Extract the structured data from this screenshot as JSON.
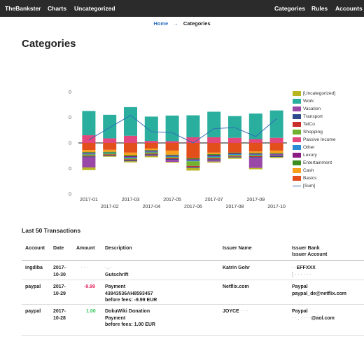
{
  "navbar": {
    "brand": "TheBankster",
    "left_links": [
      "Charts",
      "Uncategorized"
    ],
    "right_links": [
      "Categories",
      "Rules",
      "Accounts"
    ]
  },
  "breadcrumb": {
    "home": "Home",
    "separator": "→",
    "current": "Categories"
  },
  "page_title": "Categories",
  "chart_data": {
    "type": "bar",
    "stacked": true,
    "title": "",
    "xlabel": "",
    "ylabel": "",
    "categories": [
      "2017-01",
      "2017-02",
      "2017-03",
      "2017-04",
      "2017-05",
      "2017-06",
      "2017-07",
      "2017-08",
      "2017-09",
      "2017-10"
    ],
    "y_tick_labels": [
      "0",
      "0",
      "0",
      "0",
      "0"
    ],
    "ylim": [
      -2,
      2
    ],
    "zero_line": true,
    "colors": {
      "[Uncategorized]": "#b7b521",
      "Work": "#2aaf9e",
      "Vacation": "#9a48a8",
      "Transport": "#2f4a8c",
      "TelCo": "#c9302c",
      "Shopping": "#6fb22f",
      "Passive Income": "#e2477e",
      "Other": "#2b8ad3",
      "Luxury": "#8a1c84",
      "Entertainment": "#3c8d1f",
      "Cash": "#f7a01e",
      "Basics": "#e24f1b",
      "[Sum]": "#2f6db5"
    },
    "positive_series": [
      {
        "name": "Passive Income",
        "values": [
          0.3,
          0.18,
          0.28,
          0.08,
          0.07,
          0.22,
          0.22,
          0.2,
          0.15,
          0.2
        ]
      },
      {
        "name": "Work",
        "values": [
          0.95,
          0.92,
          1.12,
          0.95,
          1.0,
          0.86,
          1.0,
          0.85,
          1.0,
          1.07
        ]
      }
    ],
    "negative_series": [
      {
        "name": "Basics",
        "values": [
          0.28,
          0.27,
          0.38,
          0.22,
          0.3,
          0.6,
          0.38,
          0.38,
          0.33,
          0.3
        ]
      },
      {
        "name": "Cash",
        "values": [
          0.08,
          0.08,
          0.1,
          0.06,
          0.16,
          0.0,
          0.06,
          0.0,
          0.06,
          0.1
        ]
      },
      {
        "name": "Entertainment",
        "values": [
          0.03,
          0.03,
          0.04,
          0.03,
          0.03,
          0.04,
          0.04,
          0.03,
          0.03,
          0.03
        ]
      },
      {
        "name": "Luxury",
        "values": [
          0.03,
          0.0,
          0.04,
          0.03,
          0.03,
          0.04,
          0.04,
          0.03,
          0.03,
          0.03
        ]
      },
      {
        "name": "Other",
        "values": [
          0.03,
          0.03,
          0.04,
          0.03,
          0.03,
          0.04,
          0.04,
          0.03,
          0.03,
          0.03
        ]
      },
      {
        "name": "Shopping",
        "values": [
          0.05,
          0.04,
          0.04,
          0.05,
          0.04,
          0.18,
          0.04,
          0.04,
          0.04,
          0.0
        ]
      },
      {
        "name": "TelCo",
        "values": [
          0.03,
          0.03,
          0.04,
          0.03,
          0.04,
          0.04,
          0.04,
          0.03,
          0.03,
          0.03
        ]
      },
      {
        "name": "Transport",
        "values": [
          0.03,
          0.03,
          0.04,
          0.03,
          0.03,
          0.04,
          0.04,
          0.03,
          0.03,
          0.03
        ]
      },
      {
        "name": "Vacation",
        "values": [
          0.4,
          0.0,
          0.0,
          0.03,
          0.08,
          0.0,
          0.05,
          0.0,
          0.4,
          0.0
        ]
      },
      {
        "name": "[Uncategorized]",
        "values": [
          0.1,
          0.03,
          0.04,
          0.05,
          0.03,
          0.1,
          0.04,
          0.05,
          0.05,
          0.04
        ]
      }
    ],
    "sum_series": {
      "name": "[Sum]",
      "values": [
        0.12,
        0.6,
        1.08,
        0.44,
        0.4,
        0.0,
        0.56,
        0.6,
        0.25,
        0.95
      ]
    },
    "legend_position": "right",
    "legend": [
      "[Uncategorized]",
      "Work",
      "Vacation",
      "Transport",
      "TelCo",
      "Shopping",
      "Passive Income",
      "Other",
      "Luxury",
      "Entertainment",
      "Cash",
      "Basics",
      "[Sum]"
    ]
  },
  "transactions": {
    "title": "Last 50 Transactions",
    "headers": {
      "account": "Account",
      "date": "Date",
      "amount": "Amount",
      "description": "Description",
      "issuer_name": "Issuer Name",
      "issuer_bank": "Issuer Bank",
      "issuer_account": "Issuer Account"
    },
    "rows": [
      {
        "account": "ingdiba",
        "date_line1": "2017-",
        "date_line2": "10-30",
        "amount": "",
        "desc_line1": "",
        "desc_line2": "Gutschrift",
        "desc_line3": "",
        "issuer_name": "Katrin Gohr",
        "bank": "EFFXXX",
        "issuer_account": ""
      },
      {
        "account": "paypal",
        "date_line1": "2017-",
        "date_line2": "10-29",
        "amount": "-9.99",
        "desc_line1": "Payment",
        "desc_line2": "43843536AH8593457",
        "desc_line3": "before fees: -9.99 EUR",
        "issuer_name": "Netflix.com",
        "bank": "Paypal",
        "issuer_account": "paypal_de@netflix.com"
      },
      {
        "account": "paypal",
        "date_line1": "2017-",
        "date_line2": "10-28",
        "amount": "1.00",
        "desc_line1": "DokuWiki Donation",
        "desc_line2": "Payment",
        "desc_line3": "before fees: 1.00 EUR",
        "issuer_name": "JOYCE",
        "bank": "Paypal",
        "issuer_account": "@aol.com"
      }
    ]
  }
}
